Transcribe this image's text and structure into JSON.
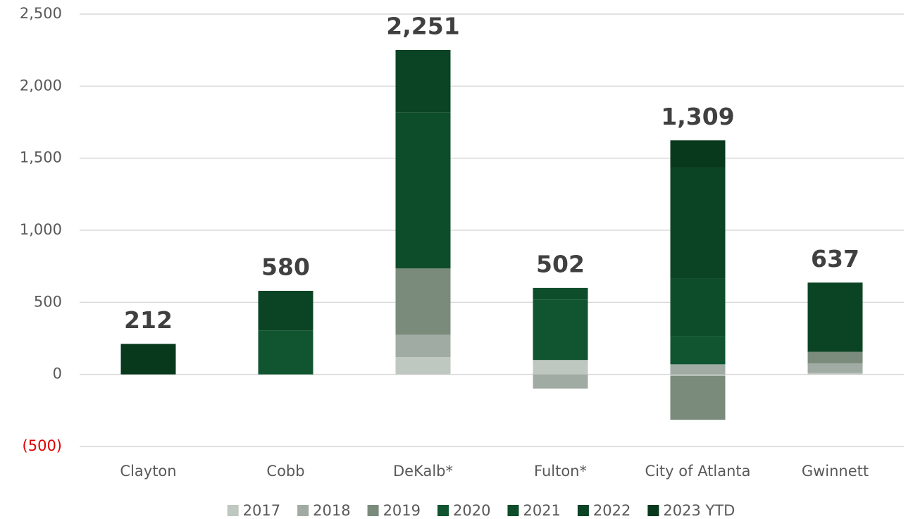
{
  "chart_data": {
    "type": "stacked_bar",
    "categories": [
      "Clayton",
      "Cobb",
      "DeKalb*",
      "Fulton*",
      "City of Atlanta",
      "Gwinnett"
    ],
    "series": [
      {
        "name": "2017",
        "color": "#bfc7c1",
        "values": [
          0,
          0,
          120,
          100,
          -10,
          10
        ]
      },
      {
        "name": "2018",
        "color": "#a0aba3",
        "values": [
          0,
          0,
          155,
          -98,
          70,
          67
        ]
      },
      {
        "name": "2019",
        "color": "#7a8b7b",
        "values": [
          0,
          0,
          460,
          0,
          -305,
          80
        ]
      },
      {
        "name": "2020",
        "color": "#10552f",
        "values": [
          0,
          305,
          0,
          420,
          195,
          0
        ]
      },
      {
        "name": "2021",
        "color": "#0e4d2a",
        "values": [
          0,
          0,
          1085,
          80,
          400,
          0
        ]
      },
      {
        "name": "2022",
        "color": "#0b4425",
        "values": [
          0,
          275,
          431,
          0,
          770,
          480
        ]
      },
      {
        "name": "2023 YTD",
        "color": "#08391d",
        "values": [
          212,
          0,
          0,
          0,
          189,
          0
        ]
      }
    ],
    "totals": {
      "values": [
        212,
        580,
        2251,
        502,
        1309,
        637
      ],
      "value_labels": [
        "212",
        "580",
        "2,251",
        "502",
        "1,309",
        "637"
      ]
    },
    "ylim": [
      -500,
      2500
    ],
    "yticks": [
      {
        "value": -500,
        "label": "(500)"
      },
      0,
      500,
      {
        "value": 1000,
        "label": "1,000"
      },
      {
        "value": 1500,
        "label": "1,500"
      },
      {
        "value": 2000,
        "label": "2,000"
      },
      {
        "value": 2500,
        "label": "2,500"
      }
    ],
    "negative_tick_color": "#e00000",
    "grid": true,
    "legend": "bottom"
  }
}
